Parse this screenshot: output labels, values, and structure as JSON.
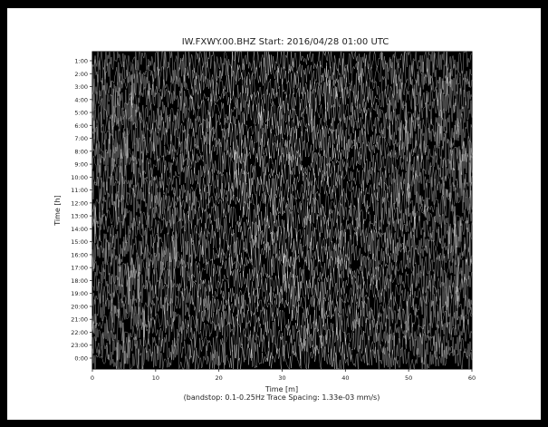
{
  "chart_data": {
    "type": "line",
    "title": "IW.FXWY.00.BHZ  Start: 2016/04/28 01:00 UTC",
    "xlabel": "Time [m]",
    "ylabel": "Time [h]",
    "subtitle": "(bandstop: 0.1-0.25Hz  Trace Spacing: 1.33e-03 mm/s)",
    "xlim": [
      0,
      60
    ],
    "x_ticks": [
      "0",
      "10",
      "20",
      "30",
      "40",
      "50",
      "60"
    ],
    "y_ticks": [
      "1:00",
      "2:00",
      "3:00",
      "4:00",
      "5:00",
      "6:00",
      "7:00",
      "8:00",
      "9:00",
      "10:00",
      "11:00",
      "12:00",
      "13:00",
      "14:00",
      "15:00",
      "16:00",
      "17:00",
      "18:00",
      "19:00",
      "20:00",
      "21:00",
      "22:00",
      "23:00",
      "0:00"
    ],
    "grid": false,
    "background_color": "#000000",
    "trace_color": "#ffffff",
    "frame_color": "#ffffff"
  }
}
